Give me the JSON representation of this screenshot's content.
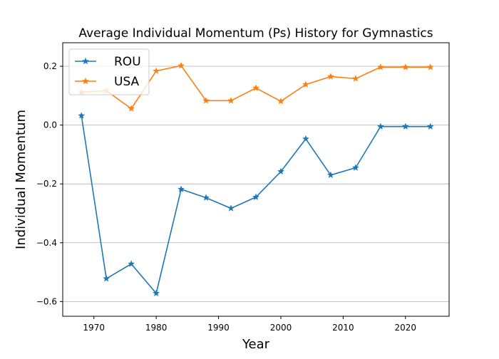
{
  "chart_data": {
    "type": "line",
    "title": "Average Individual Momentum (Ps) History for Gymnastics",
    "xlabel": "Year",
    "ylabel": "Individual Momentum",
    "xlim": [
      1965,
      2027
    ],
    "ylim": [
      -0.65,
      0.28
    ],
    "xticks": [
      1970,
      1980,
      1990,
      2000,
      2010,
      2020
    ],
    "yticks": [
      -0.6,
      -0.4,
      -0.2,
      0.0,
      0.2
    ],
    "ytick_labels": [
      "−0.6",
      "−0.4",
      "−0.2",
      "0.0",
      "0.2"
    ],
    "grid": "horizontal",
    "legend_position": "top-left",
    "marker": "star",
    "series": [
      {
        "name": "ROU",
        "color": "#1f77b4",
        "x": [
          1968,
          1972,
          1976,
          1980,
          1984,
          1988,
          1992,
          1996,
          2000,
          2004,
          2008,
          2012,
          2016,
          2020,
          2024
        ],
        "values": [
          0.032,
          -0.522,
          -0.472,
          -0.572,
          -0.218,
          -0.247,
          -0.283,
          -0.245,
          -0.158,
          -0.047,
          -0.17,
          -0.145,
          -0.005,
          -0.005,
          -0.005
        ]
      },
      {
        "name": "USA",
        "color": "#ff7f0e",
        "x": [
          1968,
          1972,
          1976,
          1980,
          1984,
          1988,
          1992,
          1996,
          2000,
          2004,
          2008,
          2012,
          2016,
          2020,
          2024
        ],
        "values": [
          0.112,
          0.117,
          0.056,
          0.184,
          0.202,
          0.083,
          0.083,
          0.126,
          0.081,
          0.138,
          0.165,
          0.158,
          0.197,
          0.197,
          0.197
        ]
      }
    ]
  }
}
